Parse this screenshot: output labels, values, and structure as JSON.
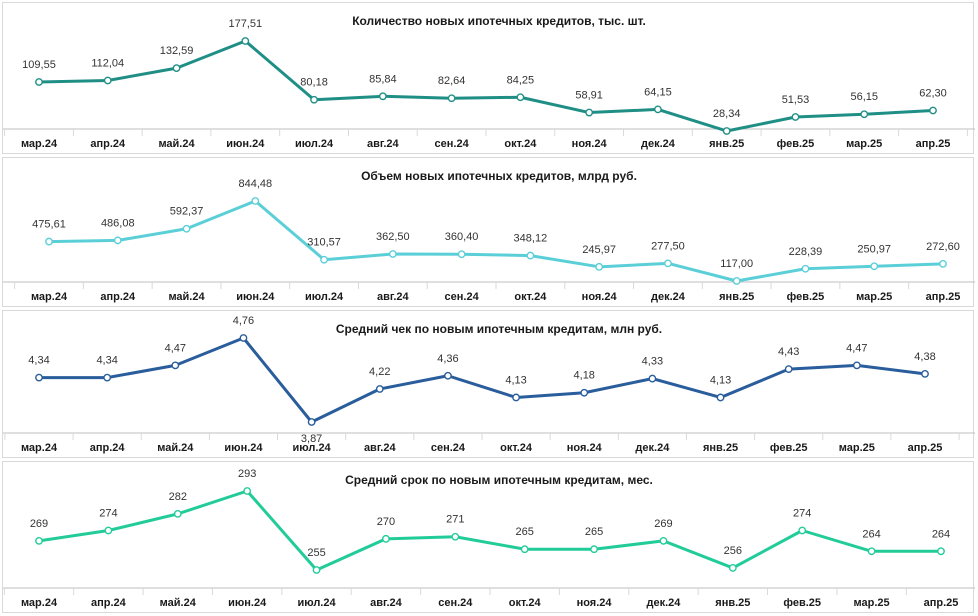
{
  "chart_data": [
    {
      "type": "line",
      "title": "Количество новых ипотечных кредитов, тыс. шт.",
      "categories": [
        "мар.24",
        "апр.24",
        "май.24",
        "июн.24",
        "июл.24",
        "авг.24",
        "сен.24",
        "окт.24",
        "ноя.24",
        "дек.24",
        "янв.25",
        "фев.25",
        "мар.25",
        "апр.25"
      ],
      "values": [
        109.55,
        112.04,
        132.59,
        177.51,
        80.18,
        85.84,
        82.64,
        84.25,
        58.91,
        64.15,
        28.34,
        51.53,
        56.15,
        62.3
      ],
      "labels": [
        "109,55",
        "112,04",
        "132,59",
        "177,51",
        "80,18",
        "85,84",
        "82,64",
        "84,25",
        "58,91",
        "64,15",
        "28,34",
        "51,53",
        "56,15",
        "62,30"
      ],
      "color": "#1f8f86",
      "ylim": [
        28.34,
        177.51
      ]
    },
    {
      "type": "line",
      "title": "Объем новых ипотечных кредитов, млрд руб.",
      "categories": [
        "мар.24",
        "апр.24",
        "май.24",
        "июн.24",
        "июл.24",
        "авг.24",
        "сен.24",
        "окт.24",
        "ноя.24",
        "дек.24",
        "янв.25",
        "фев.25",
        "мар.25",
        "апр.25"
      ],
      "values": [
        475.61,
        486.08,
        592.37,
        844.48,
        310.57,
        362.5,
        360.4,
        348.12,
        245.97,
        277.5,
        117.0,
        228.39,
        250.97,
        272.6
      ],
      "labels": [
        "475,61",
        "486,08",
        "592,37",
        "844,48",
        "310,57",
        "362,50",
        "360,40",
        "348,12",
        "245,97",
        "277,50",
        "117,00",
        "228,39",
        "250,97",
        "272,60"
      ],
      "color": "#5bcfd8",
      "ylim": [
        117.0,
        844.48
      ]
    },
    {
      "type": "line",
      "title": "Средний чек по новым ипотечным кредитам, млн руб.",
      "categories": [
        "мар.24",
        "апр.24",
        "май.24",
        "июн.24",
        "июл.24",
        "авг.24",
        "сен.24",
        "окт.24",
        "ноя.24",
        "дек.24",
        "янв.25",
        "фев.25",
        "мар.25",
        "апр.25"
      ],
      "values": [
        4.34,
        4.34,
        4.47,
        4.76,
        3.87,
        4.22,
        4.36,
        4.13,
        4.18,
        4.33,
        4.13,
        4.43,
        4.47,
        4.38
      ],
      "labels": [
        "4,34",
        "4,34",
        "4,47",
        "4,76",
        "3,87",
        "4,22",
        "4,36",
        "4,13",
        "4,18",
        "4,33",
        "4,13",
        "4,43",
        "4,47",
        "4,38"
      ],
      "color": "#2a5d9c",
      "ylim": [
        3.87,
        4.76
      ]
    },
    {
      "type": "line",
      "title": "Средний срок по новым ипотечным кредитам, мес.",
      "categories": [
        "мар.24",
        "апр.24",
        "май.24",
        "июн.24",
        "июл.24",
        "авг.24",
        "сен.24",
        "окт.24",
        "ноя.24",
        "дек.24",
        "янв.25",
        "фев.25",
        "мар.25",
        "апр.25"
      ],
      "values": [
        269,
        274,
        282,
        293,
        255,
        270,
        271,
        265,
        265,
        269,
        256,
        274,
        264,
        264
      ],
      "labels": [
        "269",
        "274",
        "282",
        "293",
        "255",
        "270",
        "271",
        "265",
        "265",
        "269",
        "256",
        "274",
        "264",
        "264"
      ],
      "color": "#22cc99",
      "ylim": [
        255,
        293
      ]
    }
  ]
}
